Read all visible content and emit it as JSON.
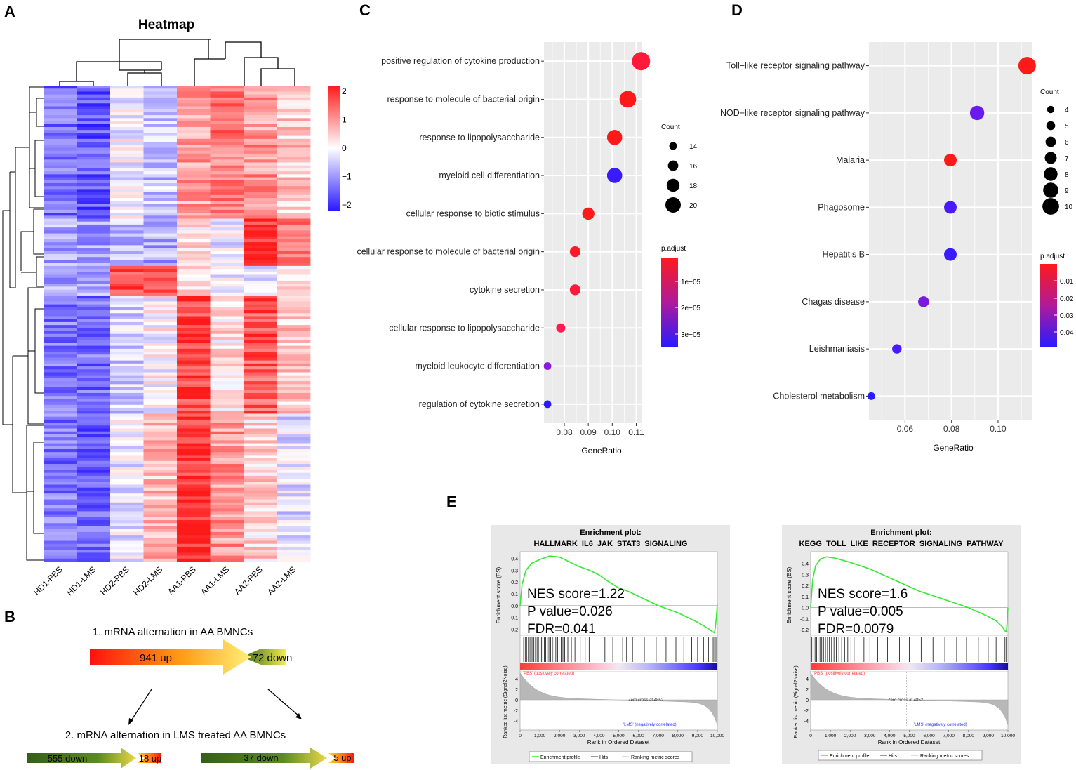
{
  "panels": {
    "A": "A",
    "B": "B",
    "C": "C",
    "D": "D",
    "E": "E"
  },
  "colors": {
    "red": "#ff1a1a",
    "blue": "#2a1aff",
    "purple": "#7b1fd6",
    "green": "#35ea35",
    "white": "#ffffff"
  },
  "chart_data": [
    {
      "id": "heatmap",
      "type": "heatmap",
      "title": "Heatmap",
      "samples": [
        "HD1-PBS",
        "HD1-LMS",
        "HD2-PBS",
        "HD2-LMS",
        "AA1-PBS",
        "AA1-LMS",
        "AA2-PBS",
        "AA2-LMS"
      ],
      "scale_ticks": [
        "2",
        "1",
        "0",
        "−1",
        "−2"
      ],
      "scale_range": [
        -2.2,
        2.2
      ],
      "clusters": [
        {
          "rows": 45,
          "means": [
            -1.4,
            -1.6,
            -0.1,
            -0.6,
            0.9,
            1.3,
            1.0,
            0.5
          ]
        },
        {
          "rows": 16,
          "means": [
            -0.8,
            -0.9,
            -0.6,
            -0.8,
            0.2,
            -0.2,
            1.9,
            1.2
          ]
        },
        {
          "rows": 10,
          "means": [
            -0.9,
            -0.9,
            1.6,
            1.9,
            0.4,
            -0.1,
            -0.4,
            0.2
          ]
        },
        {
          "rows": 40,
          "means": [
            -1.3,
            -1.4,
            -0.4,
            0.0,
            1.8,
            0.3,
            1.6,
            0.6
          ]
        },
        {
          "rows": 50,
          "means": [
            -1.3,
            -1.5,
            -0.2,
            0.7,
            2.0,
            1.0,
            0.4,
            -0.3
          ]
        }
      ]
    },
    {
      "id": "go-dotplot",
      "type": "scatter",
      "xlabel": "GeneRatio",
      "xlim": [
        0.0715,
        0.1125
      ],
      "xticks": [
        0.08,
        0.09,
        0.1,
        0.11
      ],
      "xtick_labels": [
        "0.08",
        "0.09",
        "0.10",
        "0.11"
      ],
      "terms": [
        {
          "label": "positive regulation of cytokine production",
          "ratio": 0.112,
          "count": 20,
          "color": "#ff1a3a"
        },
        {
          "label": "response to molecule of bacterial origin",
          "ratio": 0.1065,
          "count": 19,
          "color": "#ff1a1a"
        },
        {
          "label": "response to lipopolysaccharide",
          "ratio": 0.101,
          "count": 18,
          "color": "#ff1a1a"
        },
        {
          "label": "myeloid cell differentiation",
          "ratio": 0.101,
          "count": 18,
          "color": "#3a1aff"
        },
        {
          "label": "cellular response to biotic stimulus",
          "ratio": 0.09,
          "count": 16,
          "color": "#ff1a1a"
        },
        {
          "label": "cellular response to molecule of bacterial origin",
          "ratio": 0.0845,
          "count": 15,
          "color": "#ff1a2a"
        },
        {
          "label": "cytokine secretion",
          "ratio": 0.0845,
          "count": 15,
          "color": "#ff1a3a"
        },
        {
          "label": "cellular response to lipopolysaccharide",
          "ratio": 0.0785,
          "count": 14,
          "color": "#ff1a50"
        },
        {
          "label": "myeloid leukocyte differentiation",
          "ratio": 0.073,
          "count": 13,
          "color": "#8a1ae0"
        },
        {
          "label": "regulation of cytokine secretion",
          "ratio": 0.073,
          "count": 13,
          "color": "#2a1aff"
        }
      ],
      "count_legend": {
        "title": "Count",
        "labels": [
          "14",
          "16",
          "18",
          "20"
        ],
        "values": [
          14,
          16,
          18,
          20
        ]
      },
      "color_legend": {
        "title": "p.adjust",
        "labels": [
          "1e−05",
          "2e−05",
          "3e−05"
        ]
      }
    },
    {
      "id": "kegg-dotplot",
      "type": "scatter",
      "xlabel": "GeneRatio",
      "xlim": [
        0.0445,
        0.1145
      ],
      "xticks": [
        0.06,
        0.08,
        0.1
      ],
      "xtick_labels": [
        "0.06",
        "0.08",
        "0.10"
      ],
      "terms": [
        {
          "label": "Toll−like receptor signaling pathway",
          "ratio": 0.1125,
          "count": 10,
          "color": "#ff1a1a"
        },
        {
          "label": "NOD−like receptor signaling pathway",
          "ratio": 0.091,
          "count": 8,
          "color": "#6a1aee"
        },
        {
          "label": "Malaria",
          "ratio": 0.0795,
          "count": 7,
          "color": "#ff1a1a"
        },
        {
          "label": "Phagosome",
          "ratio": 0.0795,
          "count": 7,
          "color": "#4a1aff"
        },
        {
          "label": "Hepatitis B",
          "ratio": 0.0795,
          "count": 7,
          "color": "#3a1aff"
        },
        {
          "label": "Chagas disease",
          "ratio": 0.068,
          "count": 6,
          "color": "#7a1ae0"
        },
        {
          "label": "Leishmaniasis",
          "ratio": 0.0565,
          "count": 5,
          "color": "#4a1aff"
        },
        {
          "label": "Cholesterol metabolism",
          "ratio": 0.0455,
          "count": 4,
          "color": "#2a1aff"
        }
      ],
      "count_legend": {
        "title": "Count",
        "labels": [
          "4",
          "5",
          "6",
          "7",
          "8",
          "9",
          "10"
        ],
        "values": [
          4,
          5,
          6,
          7,
          8,
          9,
          10
        ]
      },
      "color_legend": {
        "title": "p.adjust",
        "labels": [
          "0.01",
          "0.02",
          "0.03",
          "0.04"
        ]
      }
    },
    {
      "id": "gsea-il6",
      "type": "line",
      "title_line1": "Enrichment plot:",
      "title_line2": "HALLMARK_IL6_JAK_STAT3_SIGNALING",
      "ylabel": "Enrichment score (ES)",
      "ylim": [
        -0.25,
        0.45
      ],
      "yticks": [
        "0.4",
        "0.3",
        "0.2",
        "0.1",
        "0.0",
        "-0.1",
        "-0.2"
      ],
      "nes_text": "NES score=1.22",
      "pvalue_text": "P value=0.026",
      "fdr_text": "FDR=0.041",
      "es_curve": {
        "x": [
          0,
          100,
          300,
          600,
          1000,
          1500,
          2000,
          2500,
          3000,
          3500,
          4000,
          4500,
          5000,
          5500,
          6000,
          6500,
          7000,
          7500,
          8000,
          8500,
          9000,
          9300,
          9600,
          9750,
          9850,
          9900,
          9950,
          10000
        ],
        "y": [
          0.0,
          0.18,
          0.3,
          0.36,
          0.39,
          0.42,
          0.41,
          0.37,
          0.33,
          0.3,
          0.26,
          0.2,
          0.15,
          0.12,
          0.08,
          0.04,
          0.0,
          -0.03,
          -0.06,
          -0.1,
          -0.14,
          -0.17,
          -0.2,
          -0.22,
          -0.23,
          -0.18,
          -0.1,
          0.02
        ]
      },
      "hits": [
        180,
        260,
        330,
        420,
        500,
        570,
        640,
        700,
        780,
        860,
        930,
        1010,
        1080,
        1150,
        1230,
        1300,
        1380,
        1460,
        1550,
        1640,
        1720,
        1810,
        1900,
        1980,
        2080,
        2170,
        2260,
        2420,
        2600,
        2780,
        3050,
        3300,
        3500,
        3650,
        3900,
        4300,
        4700,
        5200,
        5400,
        5700,
        6300,
        6900,
        7400,
        7900,
        8300,
        8700,
        9000,
        9300,
        9550,
        9750,
        9820,
        9880,
        9930
      ],
      "pos_label": "'PBS' (positively correlated)",
      "neg_label": "'LMS' (negatively correlated)",
      "zero_cross": "Zero cross at 4852",
      "zero_cross_x": 4852,
      "rlm_ylabel": "Ranked list metric (Signal2Noise)",
      "rlm_yticks": [
        "4",
        "2",
        "0",
        "-2",
        "-4"
      ],
      "xlabel": "Rank in Ordered Dataset",
      "xticks": [
        "0",
        "1,000",
        "2,000",
        "3,000",
        "4,000",
        "5,000",
        "6,000",
        "7,000",
        "8,000",
        "9,000",
        "10,000"
      ],
      "legend": [
        "Enrichment profile",
        "Hits",
        "Ranking metric scores"
      ]
    },
    {
      "id": "gsea-toll",
      "type": "line",
      "title_line1": "Enrichment plot:",
      "title_line2": "KEGG_TOLL_LIKE_RECEPTOR_SIGNALING_PATHWAY",
      "ylabel": "Enrichment score (ES)",
      "ylim": [
        -0.25,
        0.5
      ],
      "yticks": [
        "0.4",
        "0.3",
        "0.2",
        "0.1",
        "0.0",
        "-0.1",
        "-0.2"
      ],
      "nes_text": "NES score=1.6",
      "pvalue_text": "P value=0.005",
      "fdr_text": "FDR=0.0079",
      "es_curve": {
        "x": [
          0,
          100,
          250,
          500,
          800,
          1200,
          1600,
          2000,
          2500,
          3000,
          3500,
          4000,
          4500,
          5000,
          5500,
          6000,
          6500,
          7000,
          7500,
          8000,
          8500,
          9000,
          9400,
          9700,
          9850,
          9920,
          9960,
          10000
        ],
        "y": [
          0.0,
          0.25,
          0.38,
          0.44,
          0.46,
          0.45,
          0.43,
          0.41,
          0.38,
          0.35,
          0.31,
          0.27,
          0.23,
          0.19,
          0.15,
          0.12,
          0.09,
          0.06,
          0.03,
          0.0,
          -0.04,
          -0.08,
          -0.12,
          -0.17,
          -0.21,
          -0.22,
          -0.12,
          0.0
        ]
      },
      "hits": [
        60,
        130,
        220,
        300,
        380,
        470,
        560,
        650,
        750,
        850,
        950,
        1060,
        1180,
        1300,
        1430,
        1570,
        1720,
        1880,
        2040,
        2200,
        2400,
        2700,
        3000,
        3400,
        3900,
        4500,
        5000,
        5600,
        6200,
        6800,
        7400,
        7900,
        8500,
        9000,
        9400,
        9700,
        9850,
        9920
      ],
      "pos_label": "'PBS' (positively correlated)",
      "neg_label": "'LMS' (negatively correlated)",
      "zero_cross": "Zero cross at 4852",
      "zero_cross_x": 4852,
      "rlm_ylabel": "Ranked list metric (Signal2Noise)",
      "rlm_yticks": [
        "4",
        "2",
        "0",
        "-2",
        "-4"
      ],
      "xlabel": "Rank in Ordered Dataset",
      "xticks": [
        "0",
        "1,000",
        "2,000",
        "3,000",
        "4,000",
        "5,000",
        "6,000",
        "7,000",
        "8,000",
        "9,000",
        "10,000"
      ],
      "legend": [
        "Enrichment profile",
        "Hits",
        "Ranking metric scores"
      ]
    }
  ],
  "flow": {
    "step1": "1. mRNA alternation in AA BMNCs",
    "main_up": "941 up",
    "main_down": "72 down",
    "step2": "2. mRNA alternation in LMS treated  AA BMNCs",
    "left_down": "555 down",
    "left_up": "18 up",
    "right_down": "37 down",
    "right_up": "5 up"
  }
}
